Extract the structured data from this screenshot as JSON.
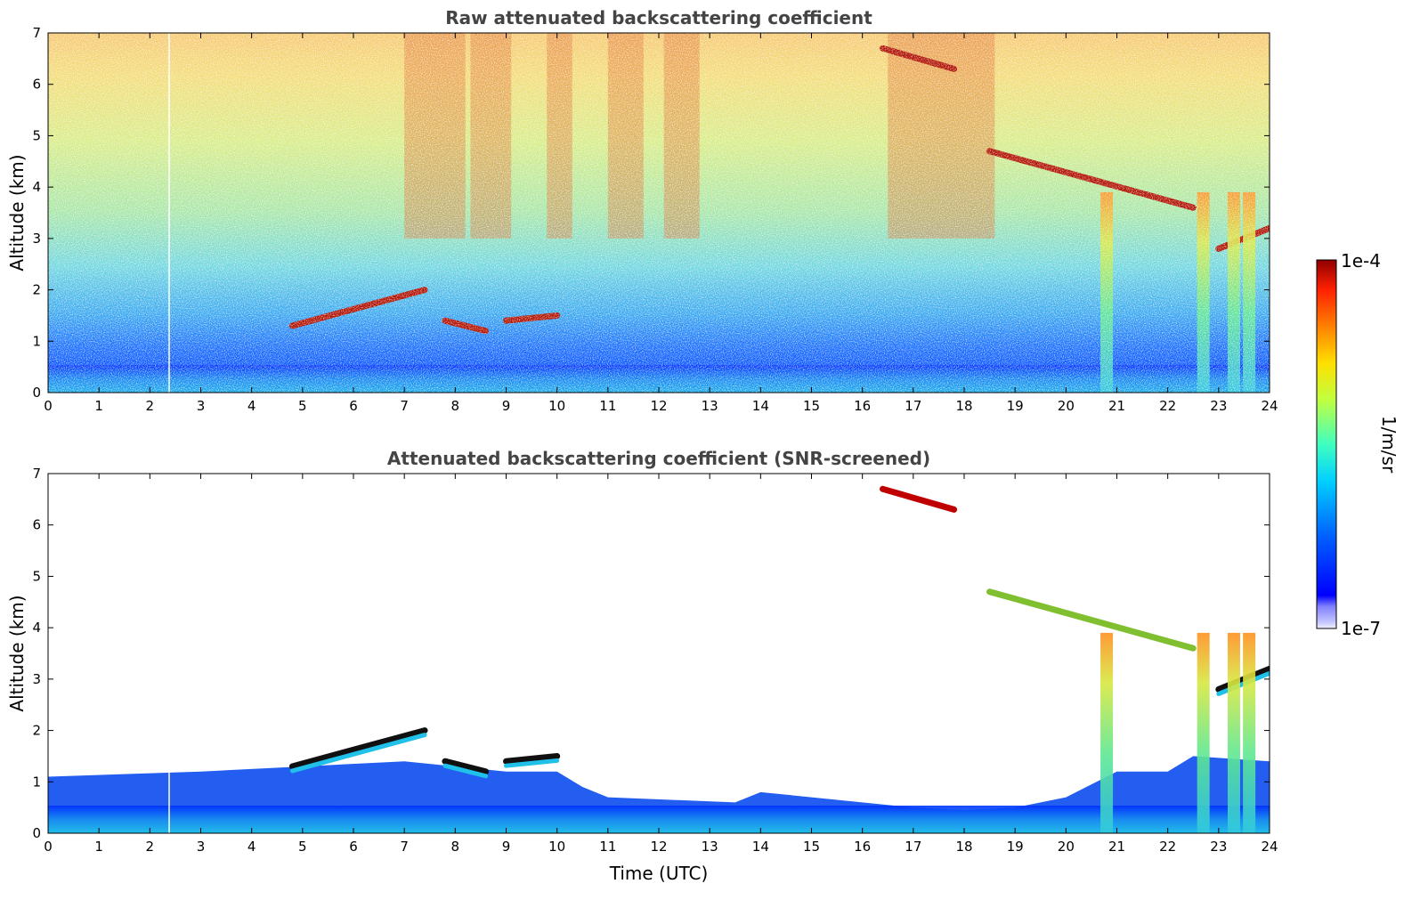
{
  "chart_data": [
    {
      "type": "heatmap",
      "title": "Raw attenuated backscattering coefficient",
      "xlabel": "",
      "ylabel": "Altitude (km)",
      "xlim": [
        0,
        24
      ],
      "ylim": [
        0,
        7
      ],
      "x_ticks": [
        "0",
        "1",
        "2",
        "3",
        "4",
        "5",
        "6",
        "7",
        "8",
        "9",
        "10",
        "11",
        "12",
        "13",
        "14",
        "15",
        "16",
        "17",
        "18",
        "19",
        "20",
        "21",
        "22",
        "23",
        "24"
      ],
      "y_ticks": [
        "0",
        "1",
        "2",
        "3",
        "4",
        "5",
        "6",
        "7"
      ],
      "screened": false,
      "cloud_layers": [
        {
          "t_start": 4.8,
          "t_end": 7.4,
          "alt_start": 1.3,
          "alt_end": 2.0
        },
        {
          "t_start": 7.8,
          "t_end": 8.6,
          "alt_start": 1.4,
          "alt_end": 1.2
        },
        {
          "t_start": 9.0,
          "t_end": 10.0,
          "alt_start": 1.4,
          "alt_end": 1.5
        },
        {
          "t_start": 16.4,
          "t_end": 17.8,
          "alt_start": 6.7,
          "alt_end": 6.3
        },
        {
          "t_start": 18.5,
          "t_end": 22.5,
          "alt_start": 4.7,
          "alt_end": 3.6
        },
        {
          "t_start": 23.0,
          "t_end": 24.0,
          "alt_start": 2.8,
          "alt_end": 3.2
        }
      ],
      "precipitation_columns": [
        20.8,
        22.7,
        23.3,
        23.6
      ]
    },
    {
      "type": "heatmap",
      "title": "Attenuated backscattering coefficient (SNR-screened)",
      "xlabel": "Time (UTC)",
      "ylabel": "Altitude (km)",
      "xlim": [
        0,
        24
      ],
      "ylim": [
        0,
        7
      ],
      "x_ticks": [
        "0",
        "1",
        "2",
        "3",
        "4",
        "5",
        "6",
        "7",
        "8",
        "9",
        "10",
        "11",
        "12",
        "13",
        "14",
        "15",
        "16",
        "17",
        "18",
        "19",
        "20",
        "21",
        "22",
        "23",
        "24"
      ],
      "y_ticks": [
        "0",
        "1",
        "2",
        "3",
        "4",
        "5",
        "6",
        "7"
      ],
      "screened": true
    }
  ],
  "colorbar": {
    "label": "1/m/sr",
    "max_label": "1e-4",
    "min_label": "1e-7",
    "scale": "log",
    "range": [
      1e-07,
      0.0001
    ],
    "colormap": "jet"
  }
}
